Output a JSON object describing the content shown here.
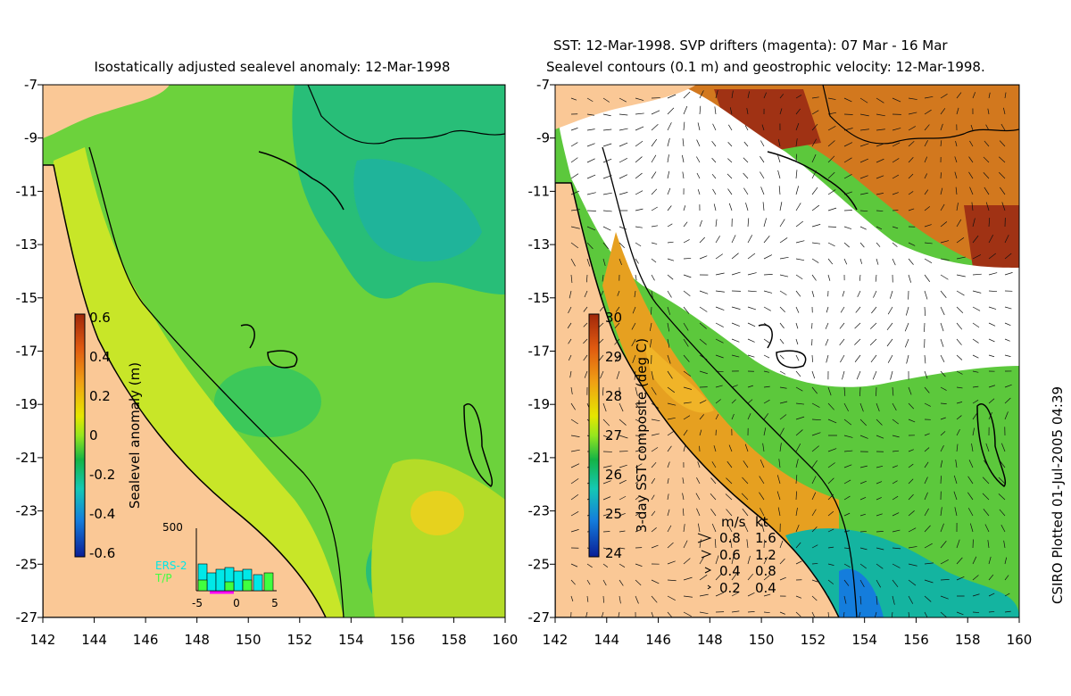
{
  "left_panel": {
    "title": "Isostatically adjusted sealevel anomaly: 12-Mar-1998",
    "colorbar": {
      "label": "Sealevel anomaly (m)",
      "ticks": [
        "0.6",
        "0.4",
        "0.2",
        "0",
        "-0.2",
        "-0.4",
        "-0.6"
      ],
      "colors": [
        "#a0280a",
        "#e05a10",
        "#f0a014",
        "#e6e600",
        "#96e61e",
        "#14b446",
        "#14c8b4",
        "#147ddc",
        "#0a1e96"
      ]
    },
    "histogram": {
      "ymax_label": "500",
      "series_labels": [
        "ERS-2",
        "T/P"
      ],
      "series_colors": [
        "#00e8e8",
        "#40ff40"
      ],
      "xticks": [
        "-5",
        "0",
        "5"
      ]
    }
  },
  "right_panel": {
    "title_line1": "SST: 12-Mar-1998. SVP drifters (magenta): 07 Mar - 16 Mar",
    "title_line2": "Sealevel contours (0.1 m) and geostrophic velocity: 12-Mar-1998.",
    "colorbar": {
      "label": "3-day SST composite (deg C)",
      "ticks": [
        "30",
        "29",
        "28",
        "27",
        "26",
        "25",
        "24"
      ],
      "colors": [
        "#a0280a",
        "#e05a10",
        "#f0a014",
        "#e6e600",
        "#96e61e",
        "#14b446",
        "#14c8b4",
        "#147ddc",
        "#0a1e96"
      ]
    },
    "legend": {
      "header_ms": "m/s",
      "header_kt": "kt",
      "rows": [
        {
          "ms": "0.8",
          "kt": "1.6"
        },
        {
          "ms": "0.6",
          "kt": "1.2"
        },
        {
          "ms": "0.4",
          "kt": "0.8"
        },
        {
          "ms": "0.2",
          "kt": "0.4"
        }
      ]
    }
  },
  "axes": {
    "y_ticks": [
      "-7",
      "-9",
      "-11",
      "-13",
      "-15",
      "-17",
      "-19",
      "-21",
      "-23",
      "-25",
      "-27"
    ],
    "x_ticks": [
      "142",
      "144",
      "146",
      "148",
      "150",
      "152",
      "154",
      "156",
      "158",
      "160"
    ]
  },
  "credit": "CSIRO Plotted 01-Jul-2005 04:39",
  "colors": {
    "land": "#fac896",
    "ocean_base": "#6cd23c",
    "ocean_deep": "#28be78",
    "ocean_shelf": "#c8e628",
    "cloud": "#ffffff"
  }
}
